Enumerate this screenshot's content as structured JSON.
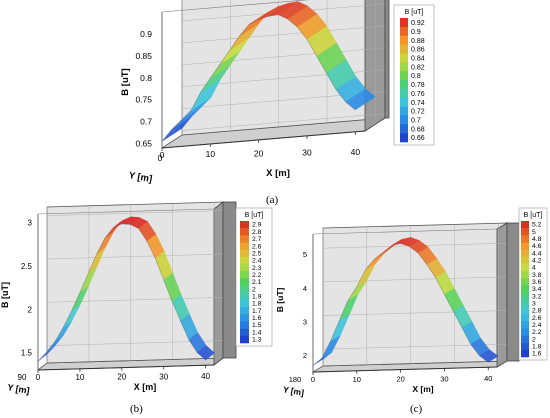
{
  "figure": {
    "captions": [
      "(a)",
      "(b)",
      "(c)"
    ]
  },
  "chart_data": [
    {
      "type": "area",
      "panel": "(a)",
      "render": "3d-ribbon",
      "xlabel": "X [m]",
      "ylabel": "Y [m]",
      "zlabel": "B [uT]",
      "x_ticks": [
        "0",
        "10",
        "20",
        "30",
        "40"
      ],
      "y_ticks": [
        "0"
      ],
      "z_ticks": [
        "0.65",
        "0.7",
        "0.75",
        "0.8",
        "0.85",
        "0.9"
      ],
      "xlim": [
        0,
        42
      ],
      "zlim": [
        0.64,
        0.95
      ],
      "legend_title": "B [uT]",
      "legend_labels": [
        "0.92",
        "0.9",
        "0.88",
        "0.86",
        "0.84",
        "0.82",
        "0.8",
        "0.78",
        "0.76",
        "0.74",
        "0.72",
        "0.7",
        "0.68",
        "0.66"
      ],
      "colorbar_range": [
        0.65,
        0.93
      ],
      "x": [
        0,
        2,
        4,
        6,
        8,
        10,
        12,
        14,
        16,
        18,
        20,
        22,
        24,
        26,
        28,
        30,
        32,
        34,
        36,
        38,
        40
      ],
      "y": [
        0.655,
        0.68,
        0.7,
        0.72,
        0.76,
        0.79,
        0.82,
        0.85,
        0.88,
        0.905,
        0.915,
        0.92,
        0.922,
        0.91,
        0.89,
        0.86,
        0.82,
        0.78,
        0.74,
        0.71,
        0.69
      ]
    },
    {
      "type": "area",
      "panel": "(b)",
      "render": "3d-ribbon",
      "xlabel": "X [m]",
      "ylabel": "Y [m]",
      "zlabel": "B [uT]",
      "x_ticks": [
        "0",
        "10",
        "20",
        "30",
        "40"
      ],
      "y_ticks": [
        "90"
      ],
      "z_ticks": [
        "1.5",
        "2",
        "2.5",
        "3"
      ],
      "xlim": [
        0,
        42
      ],
      "zlim": [
        1.3,
        3.1
      ],
      "legend_title": "B [uT]",
      "legend_labels": [
        "2.9",
        "2.8",
        "2.7",
        "2.6",
        "2.5",
        "2.4",
        "2.3",
        "2.2",
        "2.1",
        "2",
        "1.9",
        "1.8",
        "1.7",
        "1.6",
        "1.5",
        "1.4",
        "1.3"
      ],
      "colorbar_range": [
        1.3,
        2.95
      ],
      "x": [
        0,
        2,
        4,
        6,
        8,
        10,
        12,
        14,
        16,
        18,
        20,
        22,
        24,
        26,
        28,
        30,
        32,
        34,
        36,
        38,
        40
      ],
      "y": [
        1.4,
        1.5,
        1.62,
        1.78,
        1.97,
        2.18,
        2.4,
        2.62,
        2.8,
        2.92,
        2.96,
        2.95,
        2.9,
        2.75,
        2.55,
        2.3,
        2.05,
        1.82,
        1.6,
        1.45,
        1.36
      ]
    },
    {
      "type": "area",
      "panel": "(c)",
      "render": "3d-ribbon",
      "xlabel": "X [m]",
      "ylabel": "Y [m]",
      "zlabel": "B [uT]",
      "x_ticks": [
        "0",
        "10",
        "20",
        "30",
        "40"
      ],
      "y_ticks": [
        "180"
      ],
      "z_ticks": [
        "2",
        "3",
        "4",
        "5"
      ],
      "xlim": [
        0,
        42
      ],
      "zlim": [
        1.5,
        5.6
      ],
      "legend_title": "B [uT]",
      "legend_labels": [
        "5.2",
        "5",
        "4.8",
        "4.6",
        "4.4",
        "4.2",
        "4",
        "3.8",
        "3.6",
        "3.4",
        "3.2",
        "3",
        "2.8",
        "2.6",
        "2.4",
        "2.2",
        "2",
        "1.8",
        "1.6"
      ],
      "colorbar_range": [
        1.5,
        5.3
      ],
      "x": [
        0,
        2,
        4,
        6,
        8,
        10,
        12,
        14,
        16,
        18,
        20,
        22,
        24,
        26,
        28,
        30,
        32,
        34,
        36,
        38,
        40
      ],
      "y": [
        1.7,
        1.9,
        2.4,
        3.0,
        3.6,
        4.0,
        4.5,
        4.8,
        5.0,
        5.2,
        5.25,
        5.15,
        4.95,
        4.6,
        4.2,
        3.7,
        3.2,
        2.7,
        2.2,
        1.85,
        1.65
      ]
    }
  ]
}
